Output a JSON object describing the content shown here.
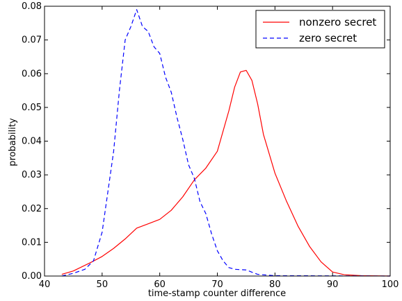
{
  "chart_data": {
    "type": "line",
    "title": "",
    "xlabel": "time-stamp counter difference",
    "ylabel": "probability",
    "xlim": [
      40,
      100
    ],
    "ylim": [
      0,
      0.08
    ],
    "xticks": [
      40,
      50,
      60,
      70,
      80,
      90,
      100
    ],
    "yticks": [
      0,
      0.01,
      0.02,
      0.03,
      0.04,
      0.05,
      0.06,
      0.07,
      0.08
    ],
    "xtick_labels": [
      "40",
      "50",
      "60",
      "70",
      "80",
      "90",
      "100"
    ],
    "ytick_labels": [
      "0.00",
      "0.01",
      "0.02",
      "0.03",
      "0.04",
      "0.05",
      "0.06",
      "0.07",
      "0.08"
    ],
    "grid": false,
    "legend": {
      "position": "top-right"
    },
    "series": [
      {
        "name": "nonzero secret",
        "color": "#ff0000",
        "style": "solid",
        "points": [
          [
            43,
            0.0005
          ],
          [
            45,
            0.0015
          ],
          [
            48,
            0.004
          ],
          [
            50,
            0.0058
          ],
          [
            52,
            0.0082
          ],
          [
            54,
            0.011
          ],
          [
            56,
            0.0142
          ],
          [
            58,
            0.0155
          ],
          [
            60,
            0.0168
          ],
          [
            62,
            0.0195
          ],
          [
            64,
            0.0235
          ],
          [
            66,
            0.0285
          ],
          [
            68,
            0.032
          ],
          [
            70,
            0.037
          ],
          [
            72,
            0.049
          ],
          [
            73,
            0.056
          ],
          [
            74,
            0.0605
          ],
          [
            75,
            0.061
          ],
          [
            76,
            0.058
          ],
          [
            77,
            0.051
          ],
          [
            78,
            0.042
          ],
          [
            80,
            0.0305
          ],
          [
            82,
            0.0222
          ],
          [
            84,
            0.0148
          ],
          [
            86,
            0.0088
          ],
          [
            88,
            0.0042
          ],
          [
            90,
            0.0012
          ],
          [
            92,
            0.0004
          ],
          [
            95,
            0.0001
          ],
          [
            100,
            0.0
          ]
        ]
      },
      {
        "name": "zero secret",
        "color": "#0000ff",
        "style": "dashed",
        "points": [
          [
            43,
            0.0
          ],
          [
            45,
            0.0008
          ],
          [
            47,
            0.002
          ],
          [
            48.5,
            0.0045
          ],
          [
            50,
            0.013
          ],
          [
            51,
            0.025
          ],
          [
            52,
            0.037
          ],
          [
            53,
            0.055
          ],
          [
            54,
            0.07
          ],
          [
            55,
            0.074
          ],
          [
            56,
            0.079
          ],
          [
            57,
            0.074
          ],
          [
            58,
            0.0725
          ],
          [
            59,
            0.068
          ],
          [
            60,
            0.066
          ],
          [
            61,
            0.059
          ],
          [
            62,
            0.0545
          ],
          [
            63,
            0.047
          ],
          [
            64,
            0.0405
          ],
          [
            65,
            0.033
          ],
          [
            66,
            0.029
          ],
          [
            67,
            0.022
          ],
          [
            68,
            0.0185
          ],
          [
            69,
            0.0125
          ],
          [
            70,
            0.0075
          ],
          [
            71,
            0.0045
          ],
          [
            72,
            0.0025
          ],
          [
            73,
            0.002
          ],
          [
            75,
            0.0018
          ],
          [
            77,
            0.0005
          ],
          [
            80,
            0.0001
          ],
          [
            100,
            0.0
          ]
        ]
      }
    ]
  }
}
